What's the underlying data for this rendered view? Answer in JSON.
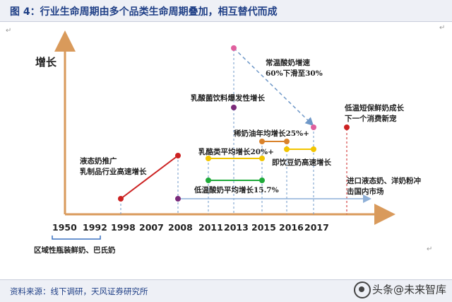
{
  "figure": {
    "title": "图 4：行业生命周期由多个品类生命周期叠加，相互替代而成",
    "source": "资料来源：线下调研，天风证券研究所",
    "watermark": "头条@未来智库"
  },
  "axis": {
    "y_title": "增长",
    "years": [
      "1950",
      "1992",
      "1998",
      "2007",
      "2008",
      "2011",
      "2013",
      "2015",
      "2016",
      "2017"
    ],
    "baseline_note": "区域性瓶装鲜奶、巴氏奶"
  },
  "notes": {
    "liquid_milk": [
      "液态奶推广",
      "乳制品行业高速增长"
    ],
    "lactic_bacteria": "乳酸菌饮料爆发性增长",
    "ambient_yogurt": [
      "常温酸奶增速",
      "60%下滑至30%"
    ],
    "dilute_cream": "稀奶油年均增长25%+",
    "cheese": "乳酪类平均增长20%+",
    "low_temp_yogurt": "低温酸奶平均增长15.7%",
    "instant_milk_powder": "即饮豆奶高速增长",
    "fresh_milk": [
      "低温短保鲜奶成长",
      "下一个消费新宠"
    ],
    "imports": [
      "进口液态奶、洋奶粉冲",
      "击国内市场"
    ]
  },
  "colors": {
    "axis": "#d99a5b",
    "red": "#cc2222",
    "purple": "#7a2a7a",
    "pink": "#e0609e",
    "orange": "#d9822b",
    "yellow": "#f2c500",
    "green": "#1faa3a",
    "blue_dashed": "#6f98c8",
    "import_arrow": "#8fb0d8"
  }
}
